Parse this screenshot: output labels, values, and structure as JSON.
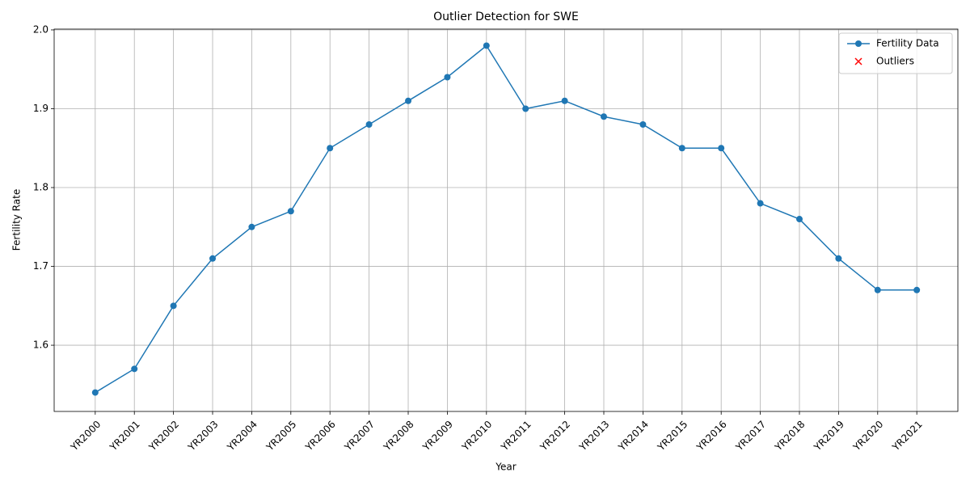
{
  "chart_data": {
    "type": "line",
    "title": "Outlier Detection for SWE",
    "x_label": "Year",
    "y_label": "Fertility Rate",
    "categories": [
      "YR2000",
      "YR2001",
      "YR2002",
      "YR2003",
      "YR2004",
      "YR2005",
      "YR2006",
      "YR2007",
      "YR2008",
      "YR2009",
      "YR2010",
      "YR2011",
      "YR2012",
      "YR2013",
      "YR2014",
      "YR2015",
      "YR2016",
      "YR2017",
      "YR2018",
      "YR2019",
      "YR2020",
      "YR2021"
    ],
    "series": [
      {
        "name": "Fertility Data",
        "color": "#1f77b4",
        "marker": "o",
        "values": [
          1.54,
          1.57,
          1.65,
          1.71,
          1.75,
          1.77,
          1.85,
          1.88,
          1.91,
          1.94,
          1.98,
          1.9,
          1.91,
          1.89,
          1.88,
          1.85,
          1.85,
          1.78,
          1.76,
          1.71,
          1.67,
          1.67
        ]
      },
      {
        "name": "Outliers",
        "color": "#ff0000",
        "marker": "x",
        "values": [
          null,
          null,
          null,
          null,
          null,
          null,
          null,
          null,
          null,
          null,
          null,
          null,
          null,
          null,
          null,
          null,
          null,
          null,
          null,
          null,
          null,
          null
        ]
      }
    ],
    "ylim": [
      1.516,
      2.001
    ],
    "yticks": [
      1.6,
      1.7,
      1.8,
      1.9,
      {
        "value": 2,
        "label": "2.0"
      }
    ],
    "grid": true,
    "legend": "upper right"
  }
}
